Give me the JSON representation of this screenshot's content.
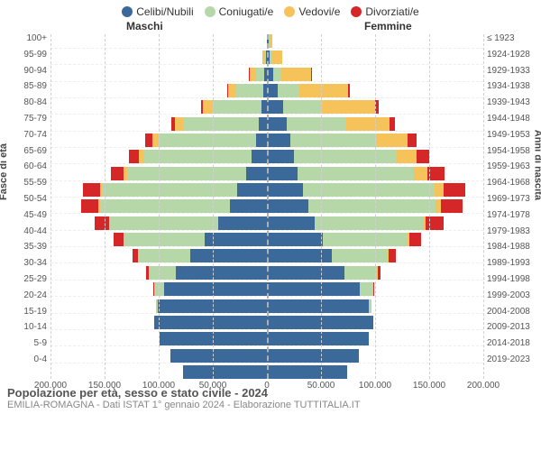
{
  "chart": {
    "type": "population-pyramid-stacked",
    "legend": [
      {
        "label": "Celibi/Nubili",
        "color": "#3b6a9a"
      },
      {
        "label": "Coniugati/e",
        "color": "#b6d7a8"
      },
      {
        "label": "Vedovi/e",
        "color": "#f6c35a"
      },
      {
        "label": "Divorziati/e",
        "color": "#d62728"
      }
    ],
    "headers": {
      "male": "Maschi",
      "female": "Femmine"
    },
    "y_left_title": "Fasce di età",
    "y_right_title": "Anni di nascita",
    "age_labels": [
      "100+",
      "95-99",
      "90-94",
      "85-89",
      "80-84",
      "75-79",
      "70-74",
      "65-69",
      "60-64",
      "55-59",
      "50-54",
      "45-49",
      "40-44",
      "35-39",
      "30-34",
      "25-29",
      "20-24",
      "15-19",
      "10-14",
      "5-9",
      "0-4"
    ],
    "year_labels": [
      "≤ 1923",
      "1924-1928",
      "1929-1933",
      "1934-1938",
      "1939-1943",
      "1944-1948",
      "1949-1953",
      "1954-1958",
      "1959-1963",
      "1964-1968",
      "1969-1973",
      "1974-1978",
      "1979-1983",
      "1984-1988",
      "1989-1993",
      "1994-1998",
      "1999-2003",
      "2004-2008",
      "2009-2013",
      "2014-2018",
      "2019-2023"
    ],
    "x_max": 200000,
    "x_ticks": [
      200000,
      150000,
      100000,
      50000,
      0,
      50000,
      100000,
      150000,
      200000
    ],
    "x_tick_labels": [
      "200.000",
      "150.000",
      "100.000",
      "50.000",
      "0",
      "50.000",
      "100.000",
      "150.000",
      "200.000"
    ],
    "grid_color": "#d0d0d0",
    "center_color": "#b0b0b0",
    "rows": [
      {
        "m": [
          500,
          100,
          200,
          0
        ],
        "f": [
          2000,
          300,
          3000,
          0
        ]
      },
      {
        "m": [
          1500,
          1000,
          2500,
          0
        ],
        "f": [
          2500,
          1500,
          10000,
          100
        ]
      },
      {
        "m": [
          3000,
          8000,
          6000,
          200
        ],
        "f": [
          6000,
          7000,
          28000,
          500
        ]
      },
      {
        "m": [
          4000,
          25000,
          8000,
          600
        ],
        "f": [
          10000,
          20000,
          45000,
          1500
        ]
      },
      {
        "m": [
          6000,
          45000,
          9000,
          1500
        ],
        "f": [
          15000,
          35000,
          50000,
          3000
        ]
      },
      {
        "m": [
          8000,
          70000,
          8000,
          3000
        ],
        "f": [
          18000,
          55000,
          40000,
          5000
        ]
      },
      {
        "m": [
          11000,
          90000,
          6000,
          6000
        ],
        "f": [
          22000,
          80000,
          28000,
          8000
        ]
      },
      {
        "m": [
          15000,
          100000,
          4000,
          9000
        ],
        "f": [
          25000,
          95000,
          18000,
          12000
        ]
      },
      {
        "m": [
          20000,
          110000,
          3000,
          12000
        ],
        "f": [
          28000,
          108000,
          12000,
          16000
        ]
      },
      {
        "m": [
          28000,
          125000,
          2000,
          16000
        ],
        "f": [
          33000,
          122000,
          8000,
          20000
        ]
      },
      {
        "m": [
          35000,
          120000,
          1500,
          16000
        ],
        "f": [
          38000,
          118000,
          5000,
          20000
        ]
      },
      {
        "m": [
          46000,
          100000,
          1000,
          13000
        ],
        "f": [
          44000,
          100000,
          3000,
          16000
        ]
      },
      {
        "m": [
          58000,
          75000,
          600,
          9000
        ],
        "f": [
          52000,
          78000,
          1500,
          11000
        ]
      },
      {
        "m": [
          72000,
          48000,
          300,
          5000
        ],
        "f": [
          60000,
          52000,
          800,
          6000
        ]
      },
      {
        "m": [
          85000,
          25000,
          150,
          2500
        ],
        "f": [
          72000,
          30000,
          400,
          3000
        ]
      },
      {
        "m": [
          96000,
          9000,
          50,
          800
        ],
        "f": [
          86000,
          12000,
          150,
          1000
        ]
      },
      {
        "m": [
          102000,
          1500,
          0,
          100
        ],
        "f": [
          94000,
          2500,
          50,
          200
        ]
      },
      {
        "m": [
          105000,
          100,
          0,
          0
        ],
        "f": [
          98000,
          200,
          0,
          0
        ]
      },
      {
        "m": [
          100000,
          0,
          0,
          0
        ],
        "f": [
          94000,
          0,
          0,
          0
        ]
      },
      {
        "m": [
          90000,
          0,
          0,
          0
        ],
        "f": [
          85000,
          0,
          0,
          0
        ]
      },
      {
        "m": [
          78000,
          0,
          0,
          0
        ],
        "f": [
          74000,
          0,
          0,
          0
        ]
      }
    ]
  },
  "footer": {
    "title": "Popolazione per età, sesso e stato civile - 2024",
    "subtitle": "EMILIA-ROMAGNA - Dati ISTAT 1° gennaio 2024 - Elaborazione TUTTITALIA.IT"
  }
}
